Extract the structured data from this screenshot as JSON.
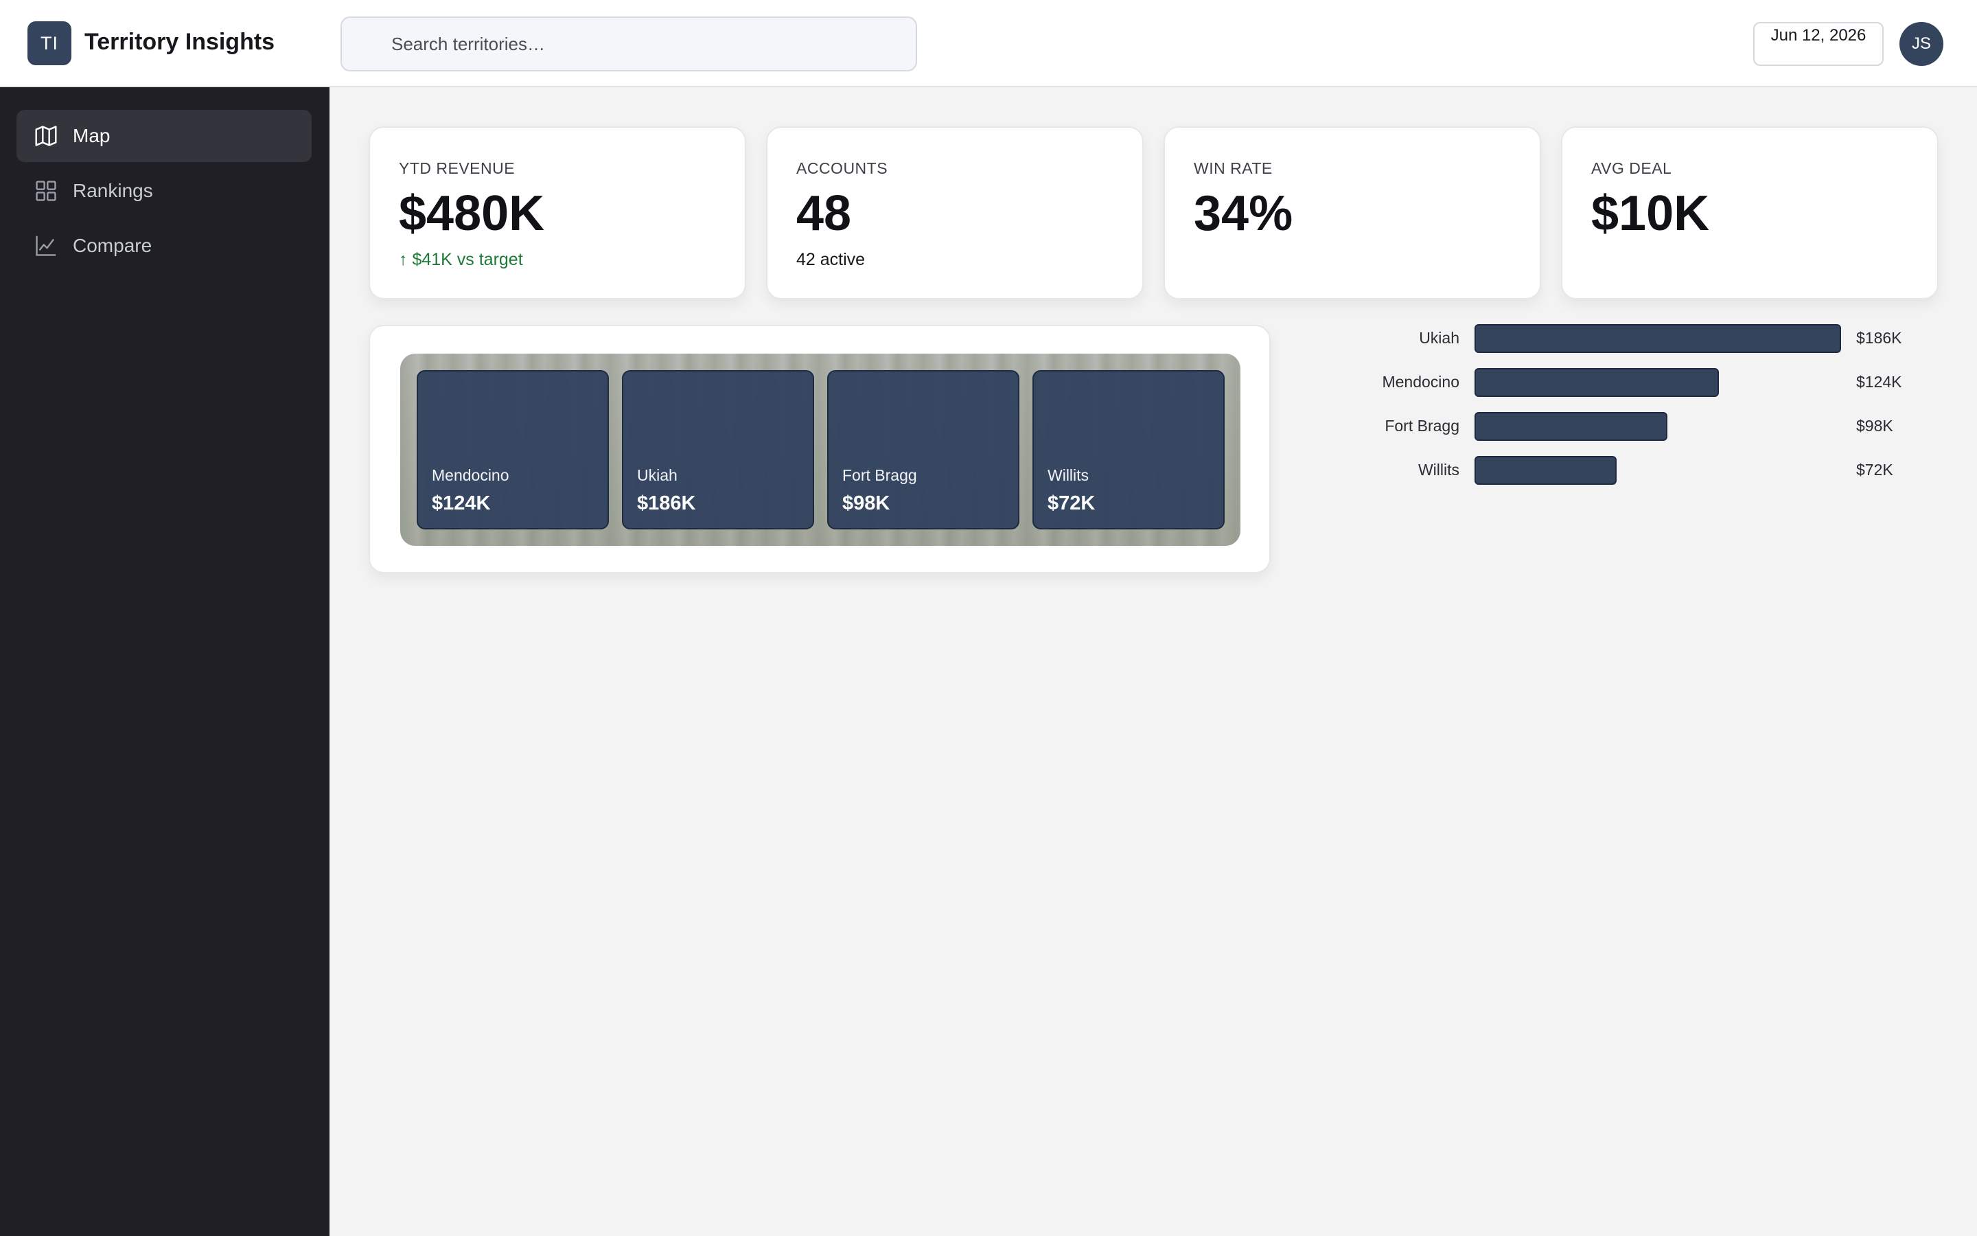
{
  "app": {
    "logo_text": "TI",
    "title": "Territory Insights"
  },
  "search": {
    "placeholder": "Search territories…",
    "icon": "search-icon"
  },
  "header": {
    "date": "Jun 12, 2026",
    "avatar_initials": "JS"
  },
  "sidebar": {
    "items": [
      {
        "label": "Map",
        "icon": "map-icon",
        "active": true
      },
      {
        "label": "Rankings",
        "icon": "grid-icon",
        "active": false
      },
      {
        "label": "Compare",
        "icon": "line-chart-icon",
        "active": false
      }
    ]
  },
  "kpis": [
    {
      "label": "YTD REVENUE",
      "value": "$480K",
      "sub": "↑ $41K vs target",
      "sub_tone": "positive"
    },
    {
      "label": "ACCOUNTS",
      "value": "48",
      "sub": "42 active",
      "sub_tone": "neutral"
    },
    {
      "label": "WIN RATE",
      "value": "34%",
      "sub": "",
      "sub_tone": "neutral"
    },
    {
      "label": "AVG DEAL",
      "value": "$10K",
      "sub": "",
      "sub_tone": "neutral"
    }
  ],
  "territory_tiles": [
    {
      "name": "Mendocino",
      "value": "$124K"
    },
    {
      "name": "Ukiah",
      "value": "$186K"
    },
    {
      "name": "Fort Bragg",
      "value": "$98K"
    },
    {
      "name": "Willits",
      "value": "$72K"
    }
  ],
  "colors": {
    "accent": "#34445c",
    "sidebar_bg": "#1f1f25",
    "positive": "#1c7a34",
    "page_bg": "#f3f3f4"
  },
  "chart_data": {
    "type": "bar",
    "orientation": "horizontal",
    "categories": [
      "Ukiah",
      "Mendocino",
      "Fort Bragg",
      "Willits"
    ],
    "values": [
      186,
      124,
      98,
      72
    ],
    "value_labels": [
      "$186K",
      "$124K",
      "$98K",
      "$72K"
    ],
    "unit": "$K",
    "xlim": [
      0,
      186
    ],
    "grid": false
  }
}
